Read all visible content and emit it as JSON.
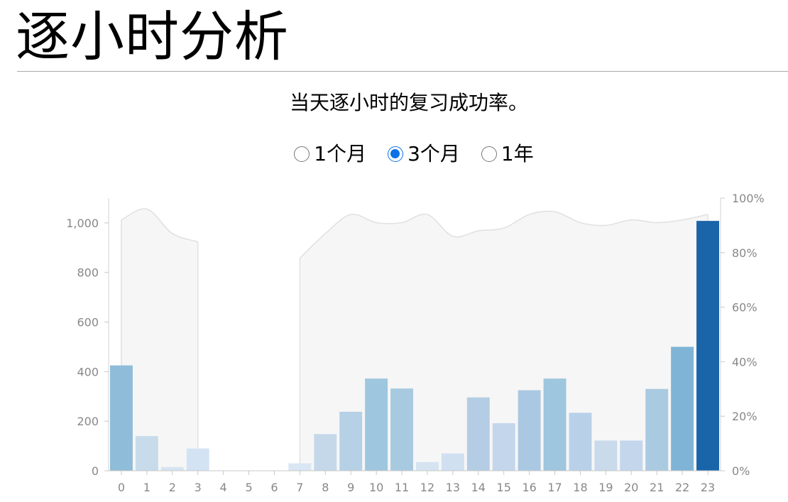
{
  "header": {
    "title": "逐小时分析"
  },
  "description": "当天逐小时的复习成功率。",
  "range_options": [
    {
      "label": "1个月",
      "selected": false
    },
    {
      "label": "3个月",
      "selected": true
    },
    {
      "label": "1年",
      "selected": false
    }
  ],
  "colors": {
    "accent": "#0b72e6",
    "line": "#e0e0e0",
    "area": "#f6f6f6",
    "axis": "#888888"
  },
  "chart_data": {
    "type": "bar",
    "categories": [
      "0",
      "1",
      "2",
      "3",
      "4",
      "5",
      "6",
      "7",
      "8",
      "9",
      "10",
      "11",
      "12",
      "13",
      "14",
      "15",
      "16",
      "17",
      "18",
      "19",
      "20",
      "21",
      "22",
      "23"
    ],
    "series": [
      {
        "values": [
          425,
          140,
          15,
          90,
          0,
          0,
          0,
          30,
          148,
          238,
          372,
          332,
          35,
          70,
          296,
          192,
          325,
          372,
          234,
          122,
          122,
          330,
          500,
          1008
        ],
        "colors": [
          "#8fbcd9",
          "#c8dbeb",
          "#d6e4f1",
          "#d3e3f4",
          null,
          null,
          null,
          "#d9e6f4",
          "#c5d8ea",
          "#b6d0e6",
          "#9ec6de",
          "#a8cae0",
          "#d6e3f1",
          "#d0e0f0",
          "#b4cde4",
          "#c4d6ec",
          "#aac8e2",
          "#9ec6de",
          "#b9d1e8",
          "#c9daeb",
          "#c4d6ec",
          "#a9cae1",
          "#7fb4d6",
          "#1a64a9"
        ]
      },
      {
        "values": [
          92,
          96,
          87,
          84,
          null,
          null,
          null,
          78,
          87,
          94,
          91,
          91,
          94,
          86,
          88,
          89,
          94,
          95,
          91,
          90,
          92,
          91,
          92,
          94
        ]
      }
    ],
    "y_left": {
      "ticks": [
        "0",
        "200",
        "400",
        "600",
        "800",
        "1,000"
      ],
      "range": [
        0,
        1100
      ]
    },
    "y_right": {
      "ticks": [
        "0%",
        "20%",
        "40%",
        "60%",
        "80%",
        "100%"
      ],
      "range": [
        0,
        100
      ]
    },
    "grid": false
  }
}
